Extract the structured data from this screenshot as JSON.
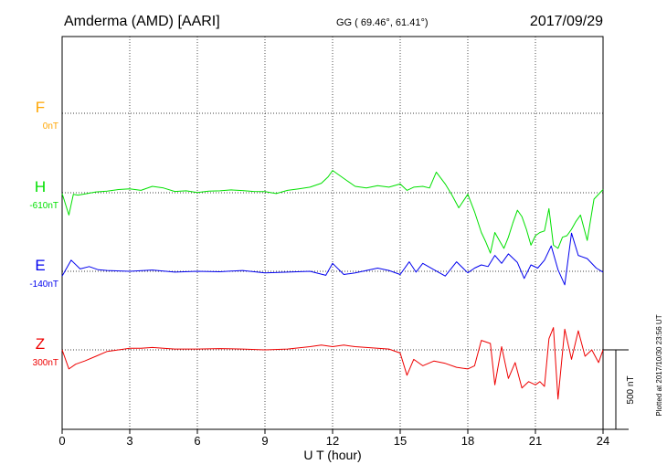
{
  "header": {
    "station": "Amderma (AMD)  [AARI]",
    "coords": "GG ( 69.46°,  61.41°)",
    "date": "2017/09/29"
  },
  "side_note": "Plotted at 2017/10/30 23:56 UT",
  "chart_data": {
    "type": "line",
    "xlabel": "U T (hour)",
    "xlim": [
      0,
      24
    ],
    "x_ticks": [
      "0",
      "3",
      "6",
      "9",
      "12",
      "15",
      "18",
      "21",
      "24"
    ],
    "scale_bar": {
      "label": "500 nT",
      "value_nT": 500
    },
    "series": [
      {
        "name": "F",
        "baseline_label": "0nT",
        "color": "#ffa500",
        "x": [],
        "values": []
      },
      {
        "name": "H",
        "baseline_label": "-610nT",
        "color": "#00e000",
        "x": [
          0,
          0.3,
          0.5,
          0.7,
          1,
          1.5,
          2,
          2.5,
          3,
          3.5,
          4,
          4.5,
          5,
          5.5,
          6,
          6.5,
          7,
          7.5,
          8,
          8.5,
          9,
          9.5,
          10,
          10.5,
          11,
          11.5,
          11.8,
          12,
          12.3,
          12.6,
          13,
          13.5,
          14,
          14.5,
          15,
          15.3,
          15.6,
          16,
          16.3,
          16.6,
          17,
          17.3,
          17.6,
          18,
          18.3,
          18.6,
          18.8,
          19,
          19.2,
          19.4,
          19.6,
          19.8,
          20,
          20.2,
          20.4,
          20.6,
          20.8,
          21,
          21.2,
          21.4,
          21.6,
          21.8,
          22,
          22.2,
          22.4,
          22.6,
          22.8,
          23,
          23.3,
          23.6,
          24
        ],
        "values": [
          -5,
          -140,
          -10,
          -15,
          -8,
          5,
          10,
          20,
          25,
          15,
          40,
          30,
          8,
          12,
          2,
          10,
          12,
          18,
          14,
          8,
          7,
          -5,
          15,
          25,
          35,
          60,
          100,
          140,
          110,
          80,
          40,
          30,
          45,
          35,
          55,
          15,
          35,
          40,
          30,
          130,
          55,
          -15,
          -95,
          -10,
          -120,
          -250,
          -310,
          -380,
          -250,
          -300,
          -350,
          -280,
          -190,
          -110,
          -150,
          -230,
          -330,
          -270,
          -250,
          -240,
          -100,
          -330,
          -350,
          -280,
          -270,
          -230,
          -180,
          -140,
          -300,
          -40,
          20
        ]
      },
      {
        "name": "E",
        "baseline_label": "-140nT",
        "color": "#0000ee",
        "x": [
          0,
          0.4,
          0.8,
          1.2,
          1.6,
          2,
          3,
          4,
          5,
          6,
          7,
          8,
          9,
          10,
          11,
          11.7,
          12,
          12.5,
          13,
          14,
          14.5,
          15,
          15.4,
          15.7,
          16,
          16.5,
          17,
          17.5,
          18,
          18.3,
          18.6,
          18.9,
          19.2,
          19.5,
          19.8,
          20.2,
          20.5,
          20.8,
          21.1,
          21.4,
          21.7,
          22,
          22.3,
          22.6,
          22.9,
          23.3,
          23.7,
          24
        ],
        "values": [
          -30,
          70,
          15,
          30,
          10,
          5,
          0,
          8,
          -5,
          0,
          -3,
          5,
          -10,
          -5,
          0,
          -25,
          50,
          -20,
          -10,
          20,
          5,
          -20,
          60,
          -5,
          50,
          10,
          -30,
          60,
          -10,
          20,
          40,
          30,
          100,
          50,
          110,
          55,
          -45,
          40,
          20,
          70,
          160,
          10,
          -85,
          240,
          100,
          80,
          20,
          -5
        ]
      },
      {
        "name": "Z",
        "baseline_label": "300nT",
        "color": "#ee0000",
        "x": [
          0,
          0.3,
          0.6,
          1,
          1.5,
          2,
          2.5,
          3,
          3.5,
          4,
          5,
          6,
          7,
          8,
          9,
          10,
          11,
          11.5,
          12,
          12.5,
          13,
          14,
          14.5,
          15,
          15.3,
          15.6,
          16,
          16.5,
          17,
          17.5,
          18,
          18.3,
          18.6,
          19,
          19.2,
          19.5,
          19.8,
          20.1,
          20.4,
          20.7,
          21,
          21.2,
          21.4,
          21.6,
          21.8,
          22,
          22.3,
          22.6,
          22.9,
          23.2,
          23.5,
          23.8,
          24
        ],
        "values": [
          0,
          -120,
          -90,
          -70,
          -40,
          -10,
          0,
          10,
          10,
          15,
          5,
          5,
          8,
          5,
          0,
          5,
          20,
          30,
          20,
          30,
          20,
          10,
          5,
          -20,
          -160,
          -60,
          -100,
          -70,
          -85,
          -110,
          -120,
          -100,
          60,
          40,
          -220,
          20,
          -180,
          -80,
          -240,
          -200,
          -220,
          -200,
          -230,
          70,
          140,
          -310,
          130,
          -60,
          120,
          -40,
          0,
          -80,
          0
        ]
      }
    ]
  }
}
